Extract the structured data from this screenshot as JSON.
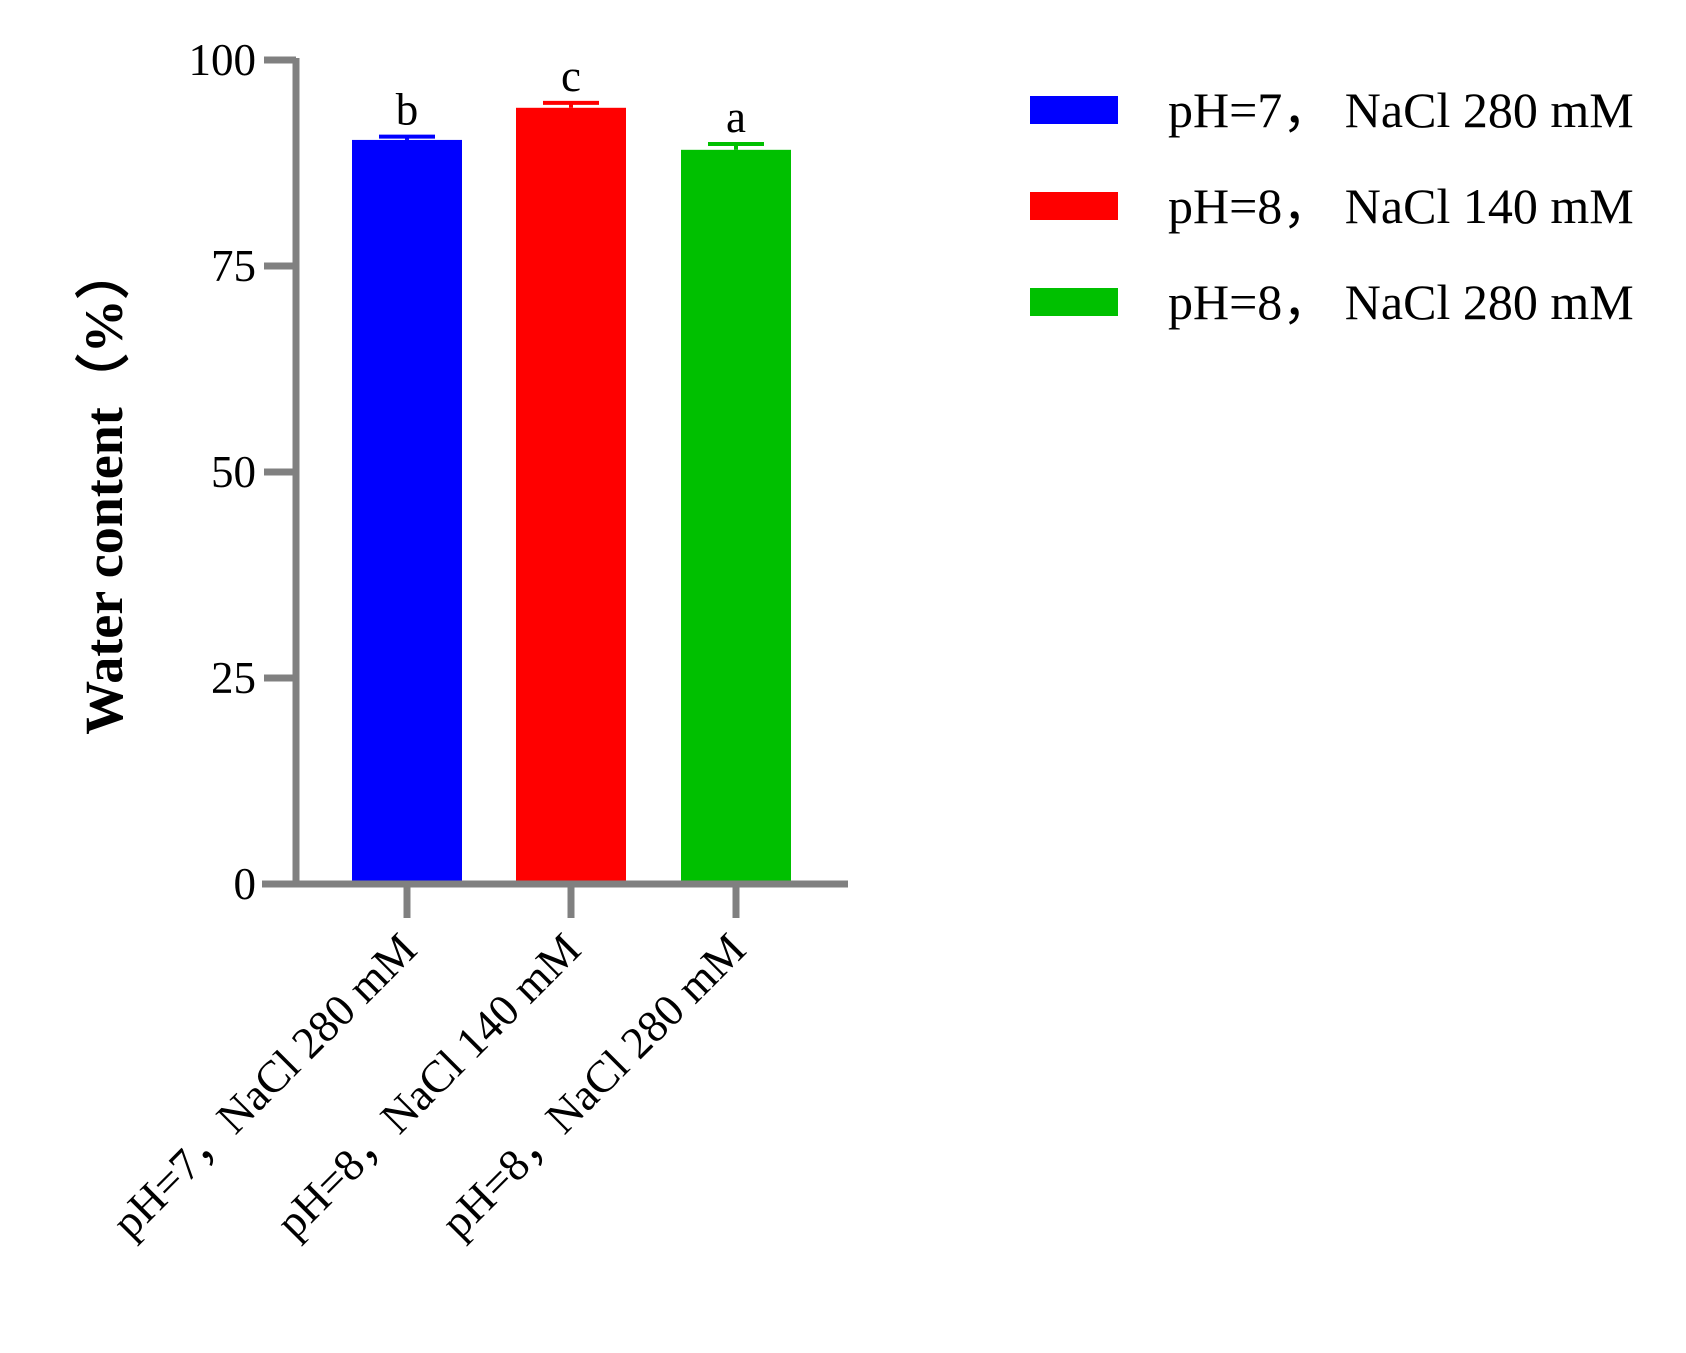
{
  "chart_data": {
    "type": "bar",
    "title": "",
    "xlabel": "",
    "ylabel": "Water content（%）",
    "ylim": [
      0,
      100
    ],
    "yticks": [
      0,
      25,
      50,
      75,
      100
    ],
    "grid": false,
    "legend_position": "top-right",
    "categories": [
      "pH=7，NaCl 280 mM",
      "pH=8，NaCl 140 mM",
      "pH=8，NaCl 280 mM"
    ],
    "values": [
      90.3,
      94.2,
      89.1
    ],
    "errors": [
      0.4,
      0.6,
      0.7
    ],
    "significance": [
      "b",
      "c",
      "a"
    ],
    "colors": [
      "#0000ff",
      "#ff0000",
      "#00c000"
    ],
    "axis_color": "#808080",
    "legend": [
      {
        "label": "pH=7， NaCl 280 mM",
        "color": "#0000ff"
      },
      {
        "label": "pH=8， NaCl 140 mM",
        "color": "#ff0000"
      },
      {
        "label": "pH=8， NaCl 280 mM",
        "color": "#00c000"
      }
    ]
  }
}
